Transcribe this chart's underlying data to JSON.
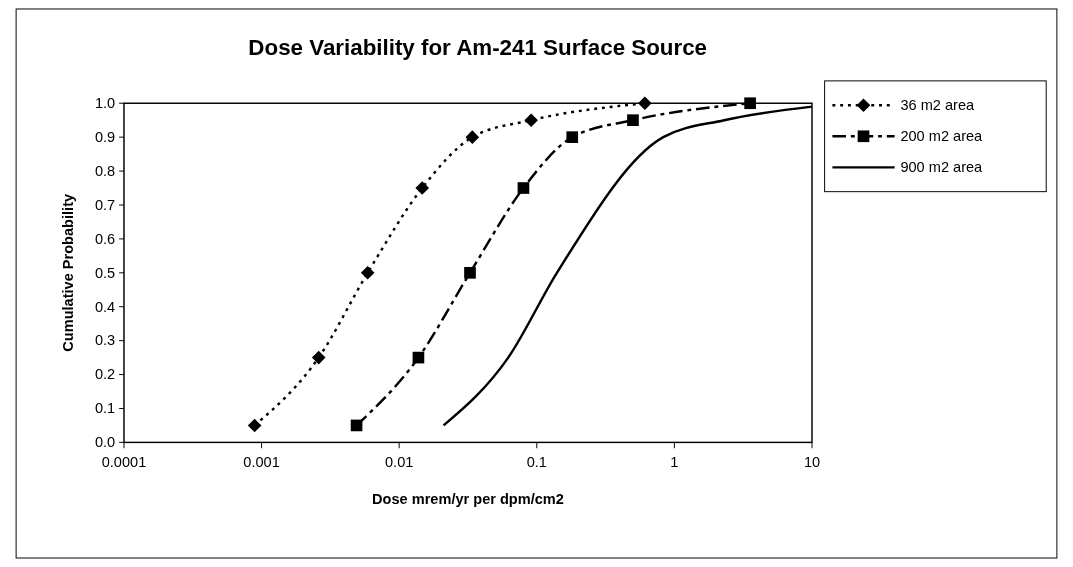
{
  "chart_data": {
    "type": "line",
    "title": "Dose Variability for Am-241 Surface Source",
    "xlabel": "Dose mrem/yr per dpm/cm2",
    "ylabel": "Cumulative Probability",
    "log": "x",
    "xlim": [
      0.0001,
      10
    ],
    "xticks": [
      0.0001,
      0.001,
      0.01,
      0.1,
      1,
      10
    ],
    "ylim": [
      0,
      1
    ],
    "yticks": [
      {
        "value": 0,
        "label": "0.0"
      },
      {
        "value": 0.1,
        "label": "0.1"
      },
      {
        "value": 0.2,
        "label": "0.2"
      },
      {
        "value": 0.3,
        "label": "0.3"
      },
      {
        "value": 0.4,
        "label": "0.4"
      },
      {
        "value": 0.5,
        "label": "0.5"
      },
      {
        "value": 0.6,
        "label": "0.6"
      },
      {
        "value": 0.7,
        "label": "0.7"
      },
      {
        "value": 0.8,
        "label": "0.8"
      },
      {
        "value": 0.9,
        "label": "0.9"
      },
      {
        "value": 1,
        "label": "1.0"
      }
    ],
    "legend": "right",
    "series": [
      {
        "name": "36 m2 area",
        "color": "#000000",
        "marker": "diamond",
        "line_style": "dotted",
        "x": [
          0.00089,
          0.0026,
          0.0059,
          0.0147,
          0.034,
          0.091,
          0.61
        ],
        "values": [
          0.05,
          0.25,
          0.5,
          0.75,
          0.9,
          0.95,
          1.0
        ]
      },
      {
        "name": "200 m2 area",
        "color": "#000000",
        "marker": "square",
        "line_style": "dashed",
        "x": [
          0.0049,
          0.0138,
          0.0327,
          0.08,
          0.181,
          0.5,
          3.55
        ],
        "values": [
          0.05,
          0.25,
          0.5,
          0.75,
          0.9,
          0.95,
          1.0
        ]
      },
      {
        "name": "900 m2 area",
        "color": "#000000",
        "marker": "none",
        "line_style": "solid",
        "x": [
          0.021,
          0.062,
          0.14,
          0.83,
          2.3,
          10
        ],
        "values": [
          0.05,
          0.25,
          0.5,
          0.9,
          0.95,
          0.99
        ]
      }
    ]
  }
}
